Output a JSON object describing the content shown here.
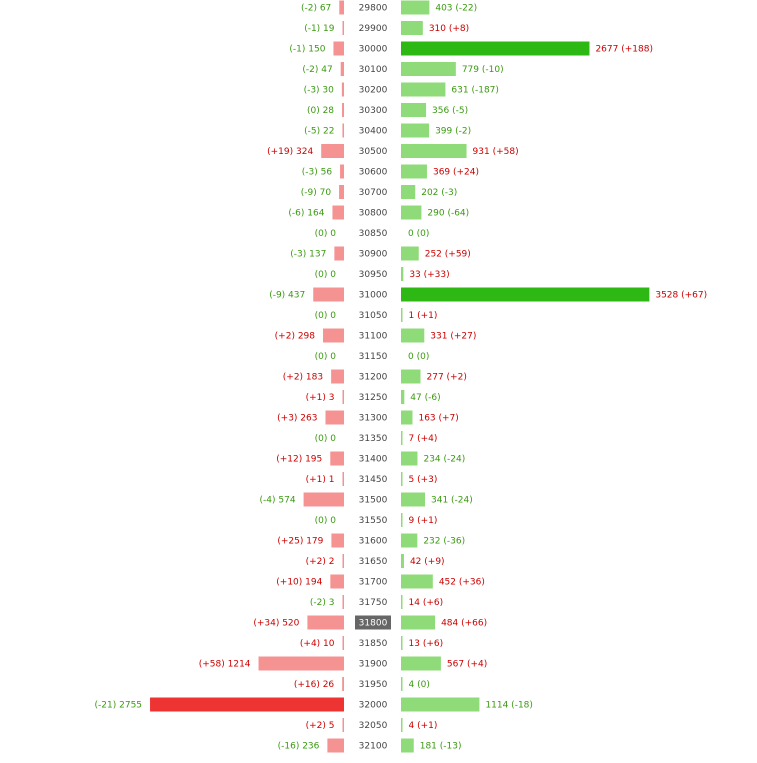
{
  "chart_data": {
    "type": "bar",
    "current_strike": "31800",
    "colors": {
      "left_bar": "#f59393",
      "left_bar_max": "#ee3333",
      "right_bar": "#8fdb7a",
      "right_bar_max": "#2db814",
      "positive_change_text": "#cc0000",
      "negative_change_text": "#3a9a10",
      "strike_text": "#444444",
      "current_strike_bg": "#666666",
      "current_strike_text": "#ffffff"
    },
    "rows": [
      {
        "strike": "29800",
        "left": 67,
        "left_change": "-2",
        "right": 403,
        "right_change": "-22"
      },
      {
        "strike": "29900",
        "left": 19,
        "left_change": "-1",
        "right": 310,
        "right_change": "+8"
      },
      {
        "strike": "30000",
        "left": 150,
        "left_change": "-1",
        "right": 2677,
        "right_change": "+188"
      },
      {
        "strike": "30100",
        "left": 47,
        "left_change": "-2",
        "right": 779,
        "right_change": "-10"
      },
      {
        "strike": "30200",
        "left": 30,
        "left_change": "-3",
        "right": 631,
        "right_change": "-187"
      },
      {
        "strike": "30300",
        "left": 28,
        "left_change": "0",
        "right": 356,
        "right_change": "-5"
      },
      {
        "strike": "30400",
        "left": 22,
        "left_change": "-5",
        "right": 399,
        "right_change": "-2"
      },
      {
        "strike": "30500",
        "left": 324,
        "left_change": "+19",
        "right": 931,
        "right_change": "+58"
      },
      {
        "strike": "30600",
        "left": 56,
        "left_change": "-3",
        "right": 369,
        "right_change": "+24"
      },
      {
        "strike": "30700",
        "left": 70,
        "left_change": "-9",
        "right": 202,
        "right_change": "-3"
      },
      {
        "strike": "30800",
        "left": 164,
        "left_change": "-6",
        "right": 290,
        "right_change": "-64"
      },
      {
        "strike": "30850",
        "left": 0,
        "left_change": "0",
        "right": 0,
        "right_change": "0"
      },
      {
        "strike": "30900",
        "left": 137,
        "left_change": "-3",
        "right": 252,
        "right_change": "+59"
      },
      {
        "strike": "30950",
        "left": 0,
        "left_change": "0",
        "right": 33,
        "right_change": "+33"
      },
      {
        "strike": "31000",
        "left": 437,
        "left_change": "-9",
        "right": 3528,
        "right_change": "+67"
      },
      {
        "strike": "31050",
        "left": 0,
        "left_change": "0",
        "right": 1,
        "right_change": "+1"
      },
      {
        "strike": "31100",
        "left": 298,
        "left_change": "+2",
        "right": 331,
        "right_change": "+27"
      },
      {
        "strike": "31150",
        "left": 0,
        "left_change": "0",
        "right": 0,
        "right_change": "0"
      },
      {
        "strike": "31200",
        "left": 183,
        "left_change": "+2",
        "right": 277,
        "right_change": "+2"
      },
      {
        "strike": "31250",
        "left": 3,
        "left_change": "+1",
        "right": 47,
        "right_change": "-6"
      },
      {
        "strike": "31300",
        "left": 263,
        "left_change": "+3",
        "right": 163,
        "right_change": "+7"
      },
      {
        "strike": "31350",
        "left": 0,
        "left_change": "0",
        "right": 7,
        "right_change": "+4"
      },
      {
        "strike": "31400",
        "left": 195,
        "left_change": "+12",
        "right": 234,
        "right_change": "-24"
      },
      {
        "strike": "31450",
        "left": 1,
        "left_change": "+1",
        "right": 5,
        "right_change": "+3"
      },
      {
        "strike": "31500",
        "left": 574,
        "left_change": "-4",
        "right": 341,
        "right_change": "-24"
      },
      {
        "strike": "31550",
        "left": 0,
        "left_change": "0",
        "right": 9,
        "right_change": "+1"
      },
      {
        "strike": "31600",
        "left": 179,
        "left_change": "+25",
        "right": 232,
        "right_change": "-36"
      },
      {
        "strike": "31650",
        "left": 2,
        "left_change": "+2",
        "right": 42,
        "right_change": "+9"
      },
      {
        "strike": "31700",
        "left": 194,
        "left_change": "+10",
        "right": 452,
        "right_change": "+36"
      },
      {
        "strike": "31750",
        "left": 3,
        "left_change": "-2",
        "right": 14,
        "right_change": "+6"
      },
      {
        "strike": "31800",
        "left": 520,
        "left_change": "+34",
        "right": 484,
        "right_change": "+66"
      },
      {
        "strike": "31850",
        "left": 10,
        "left_change": "+4",
        "right": 13,
        "right_change": "+6"
      },
      {
        "strike": "31900",
        "left": 1214,
        "left_change": "+58",
        "right": 567,
        "right_change": "+4"
      },
      {
        "strike": "31950",
        "left": 26,
        "left_change": "+16",
        "right": 4,
        "right_change": "0"
      },
      {
        "strike": "32000",
        "left": 2755,
        "left_change": "-21",
        "right": 1114,
        "right_change": "-18"
      },
      {
        "strike": "32050",
        "left": 5,
        "left_change": "+2",
        "right": 4,
        "right_change": "+1"
      },
      {
        "strike": "32100",
        "left": 236,
        "left_change": "-16",
        "right": 181,
        "right_change": "-13"
      }
    ]
  }
}
